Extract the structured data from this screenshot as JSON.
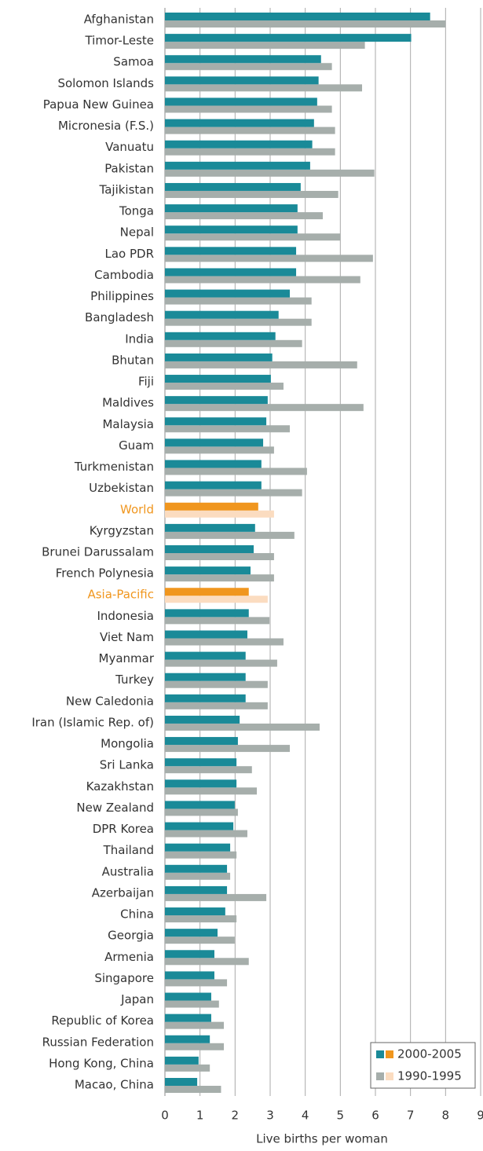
{
  "chart_data": {
    "type": "hbar",
    "x_label": "Live births per woman",
    "categories": [
      "Afghanistan",
      "Timor-Leste",
      "Samoa",
      "Solomon Islands",
      "Papua New Guinea",
      "Micronesia (F.S.)",
      "Vanuatu",
      "Pakistan",
      "Tajikistan",
      "Tonga",
      "Nepal",
      "Lao PDR",
      "Cambodia",
      "Philippines",
      "Bangladesh",
      "India",
      "Bhutan",
      "Fiji",
      "Maldives",
      "Malaysia",
      "Guam",
      "Turkmenistan",
      "Uzbekistan",
      "World",
      "Kyrgyzstan",
      "Brunei Darussalam",
      "French Polynesia",
      "Asia-Pacific",
      "Indonesia",
      "Viet Nam",
      "Myanmar",
      "Turkey",
      "New Caledonia",
      "Iran (Islamic Rep. of)",
      "Mongolia",
      "Sri Lanka",
      "Kazakhstan",
      "New Zealand",
      "DPR Korea",
      "Thailand",
      "Australia",
      "Azerbaijan",
      "China",
      "Georgia",
      "Armenia",
      "Singapore",
      "Japan",
      "Republic of Korea",
      "Russian Federation",
      "Hong Kong, China",
      "Macao, China"
    ],
    "label_colors": [
      "#333",
      "#333",
      "#333",
      "#333",
      "#333",
      "#333",
      "#333",
      "#333",
      "#333",
      "#333",
      "#333",
      "#333",
      "#333",
      "#333",
      "#333",
      "#333",
      "#333",
      "#333",
      "#333",
      "#333",
      "#333",
      "#333",
      "#333",
      "#f0961e",
      "#333",
      "#333",
      "#333",
      "#f0961e",
      "#333",
      "#333",
      "#333",
      "#333",
      "#333",
      "#333",
      "#333",
      "#333",
      "#333",
      "#333",
      "#333",
      "#333",
      "#333",
      "#333",
      "#333",
      "#333",
      "#333",
      "#333",
      "#333",
      "#333",
      "#333",
      "#333",
      "#333"
    ],
    "series": [
      {
        "name": "2000-2005",
        "colors": [
          "#1a8a98",
          "#1a8a98",
          "#1a8a98",
          "#1a8a98",
          "#1a8a98",
          "#1a8a98",
          "#1a8a98",
          "#1a8a98",
          "#1a8a98",
          "#1a8a98",
          "#1a8a98",
          "#1a8a98",
          "#1a8a98",
          "#1a8a98",
          "#1a8a98",
          "#1a8a98",
          "#1a8a98",
          "#1a8a98",
          "#1a8a98",
          "#1a8a98",
          "#1a8a98",
          "#1a8a98",
          "#1a8a98",
          "#f0961e",
          "#1a8a98",
          "#1a8a98",
          "#1a8a98",
          "#f0961e",
          "#1a8a98",
          "#1a8a98",
          "#1a8a98",
          "#1a8a98",
          "#1a8a98",
          "#1a8a98",
          "#1a8a98",
          "#1a8a98",
          "#1a8a98",
          "#1a8a98",
          "#1a8a98",
          "#1a8a98",
          "#1a8a98",
          "#1a8a98",
          "#1a8a98",
          "#1a8a98",
          "#1a8a98",
          "#1a8a98",
          "#1a8a98",
          "#1a8a98",
          "#1a8a98",
          "#1a8a98",
          "#1a8a98"
        ],
        "values": [
          7.56,
          7.02,
          4.45,
          4.38,
          4.34,
          4.25,
          4.2,
          4.14,
          3.87,
          3.78,
          3.78,
          3.74,
          3.74,
          3.56,
          3.24,
          3.15,
          3.06,
          3.02,
          2.93,
          2.89,
          2.8,
          2.75,
          2.75,
          2.66,
          2.57,
          2.53,
          2.44,
          2.39,
          2.39,
          2.35,
          2.3,
          2.3,
          2.3,
          2.13,
          2.08,
          2.04,
          2.04,
          1.99,
          1.95,
          1.86,
          1.77,
          1.77,
          1.72,
          1.5,
          1.41,
          1.41,
          1.32,
          1.32,
          1.28,
          0.96,
          0.92
        ]
      },
      {
        "name": "1990-1995",
        "colors": [
          "#a6aeab",
          "#a6aeab",
          "#a6aeab",
          "#a6aeab",
          "#a6aeab",
          "#a6aeab",
          "#a6aeab",
          "#a6aeab",
          "#a6aeab",
          "#a6aeab",
          "#a6aeab",
          "#a6aeab",
          "#a6aeab",
          "#a6aeab",
          "#a6aeab",
          "#a6aeab",
          "#a6aeab",
          "#a6aeab",
          "#a6aeab",
          "#a6aeab",
          "#a6aeab",
          "#a6aeab",
          "#a6aeab",
          "#fbdcc0",
          "#a6aeab",
          "#a6aeab",
          "#a6aeab",
          "#fbdcc0",
          "#a6aeab",
          "#a6aeab",
          "#a6aeab",
          "#a6aeab",
          "#a6aeab",
          "#a6aeab",
          "#a6aeab",
          "#a6aeab",
          "#a6aeab",
          "#a6aeab",
          "#a6aeab",
          "#a6aeab",
          "#a6aeab",
          "#a6aeab",
          "#a6aeab",
          "#a6aeab",
          "#a6aeab",
          "#a6aeab",
          "#a6aeab",
          "#a6aeab",
          "#a6aeab",
          "#a6aeab",
          "#a6aeab"
        ],
        "values": [
          8.0,
          5.7,
          4.76,
          5.62,
          4.76,
          4.85,
          4.85,
          5.97,
          4.94,
          4.5,
          5.0,
          5.93,
          5.57,
          4.18,
          4.18,
          3.91,
          5.48,
          3.38,
          5.66,
          3.56,
          3.11,
          4.05,
          3.91,
          3.11,
          3.69,
          3.11,
          3.11,
          2.93,
          2.98,
          3.38,
          3.2,
          2.93,
          2.93,
          4.41,
          3.56,
          2.48,
          2.62,
          2.08,
          2.35,
          2.04,
          1.86,
          2.89,
          2.04,
          1.99,
          2.39,
          1.77,
          1.54,
          1.68,
          1.68,
          1.28,
          1.6
        ]
      }
    ],
    "legend_swatches": [
      [
        "#1a8a98",
        "#f0961e"
      ],
      [
        "#a6aeab",
        "#fbdcc0"
      ]
    ],
    "xlim": [
      0,
      9
    ],
    "xticks": [
      0,
      1,
      2,
      3,
      4,
      5,
      6,
      7,
      8,
      9
    ],
    "grid": true,
    "legend": "lower right"
  }
}
